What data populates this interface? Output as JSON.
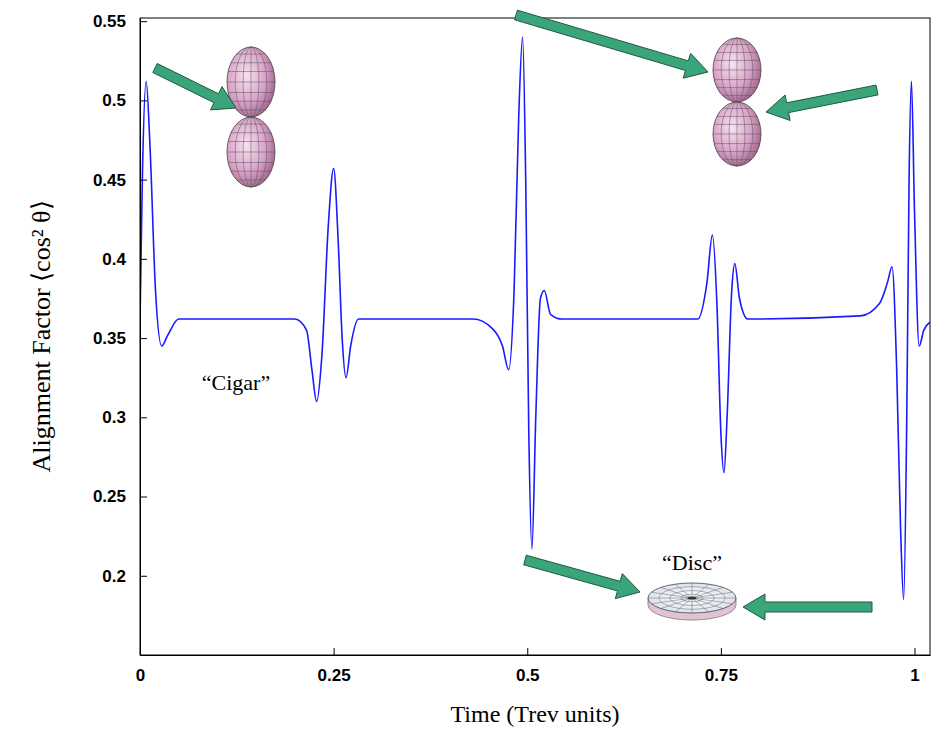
{
  "chart_data": {
    "type": "line",
    "xlabel": "Time (Trev units)",
    "ylabel": "Alignment Factor ⟨cos² θ⟩",
    "color": "#1a1aff",
    "xlim": [
      0,
      1.02
    ],
    "xticks": [
      0,
      0.25,
      0.5,
      0.75,
      1
    ],
    "ylim": [
      0.15,
      0.552
    ],
    "yticks": [
      0.2,
      0.25,
      0.3,
      0.35,
      0.4,
      0.45,
      0.5,
      0.55
    ],
    "grid": false,
    "annotations": [
      {
        "text": "“Cigar”"
      },
      {
        "text": "“Disc”"
      }
    ],
    "x": [
      0,
      0.003,
      0.008,
      0.013,
      0.02,
      0.028,
      0.036,
      0.05,
      0.2,
      0.215,
      0.222,
      0.228,
      0.235,
      0.243,
      0.25,
      0.256,
      0.261,
      0.266,
      0.272,
      0.282,
      0.43,
      0.455,
      0.468,
      0.476,
      0.483,
      0.489,
      0.494,
      0.498,
      0.502,
      0.506,
      0.511,
      0.517,
      0.522,
      0.53,
      0.545,
      0.72,
      0.732,
      0.739,
      0.745,
      0.75,
      0.754,
      0.758,
      0.764,
      0.768,
      0.774,
      0.785,
      0.93,
      0.955,
      0.965,
      0.971,
      0.977,
      0.982,
      0.986,
      0.99,
      0.993,
      0.996,
      1.0,
      1.006,
      1.012,
      1.02
    ],
    "values": [
      0.36,
      0.45,
      0.512,
      0.47,
      0.38,
      0.345,
      0.352,
      0.362,
      0.362,
      0.355,
      0.33,
      0.31,
      0.34,
      0.42,
      0.457,
      0.41,
      0.35,
      0.325,
      0.345,
      0.362,
      0.362,
      0.356,
      0.345,
      0.33,
      0.38,
      0.49,
      0.54,
      0.45,
      0.29,
      0.217,
      0.3,
      0.375,
      0.38,
      0.365,
      0.362,
      0.362,
      0.385,
      0.415,
      0.37,
      0.29,
      0.265,
      0.3,
      0.38,
      0.397,
      0.375,
      0.362,
      0.364,
      0.372,
      0.385,
      0.395,
      0.33,
      0.23,
      0.185,
      0.3,
      0.45,
      0.512,
      0.43,
      0.345,
      0.355,
      0.36
    ]
  }
}
